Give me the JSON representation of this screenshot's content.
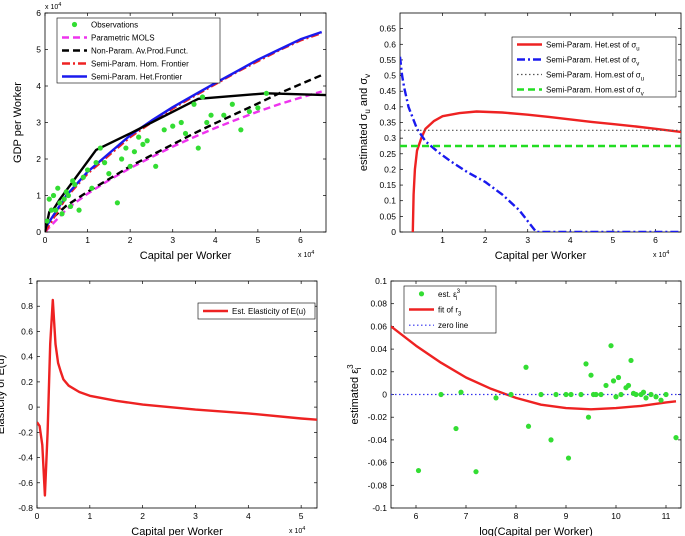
{
  "chart_data": [
    {
      "id": "gdp",
      "type": "line",
      "xlabel": "Capital per Worker",
      "ylabel": "GDP per Worker",
      "x_exponent": "x 10",
      "x_exponent_power": "4",
      "y_exponent": "x 10",
      "y_exponent_power": "4",
      "xlim": [
        0,
        6.6
      ],
      "ylim": [
        0,
        6
      ],
      "xticks": [
        0,
        1,
        2,
        3,
        4,
        5,
        6
      ],
      "yticks": [
        0,
        1,
        2,
        3,
        4,
        5,
        6
      ],
      "legend_position": "top-left",
      "legend": [
        {
          "label": "Observations",
          "color": "#33dd33",
          "style": "dot"
        },
        {
          "label": "Parametric MOLS",
          "color": "#ee33ee",
          "style": "dash"
        },
        {
          "label": "Non-Param. Av.Prod.Funct.",
          "color": "#000000",
          "style": "dash"
        },
        {
          "label": "Semi-Param. Hom. Frontier",
          "color": "#ee2222",
          "style": "dashdot"
        },
        {
          "label": "Semi-Param. Het.Frontier",
          "color": "#1a1aee",
          "style": "solid"
        }
      ],
      "scatter": {
        "x": [
          0.05,
          0.1,
          0.15,
          0.2,
          0.3,
          0.35,
          0.4,
          0.5,
          0.6,
          0.7,
          0.8,
          0.9,
          1.0,
          1.2,
          1.3,
          1.5,
          1.7,
          1.8,
          1.9,
          2.1,
          2.2,
          2.4,
          2.6,
          2.8,
          3.0,
          3.2,
          3.5,
          3.6,
          3.8,
          3.9,
          4.2,
          4.4,
          4.6,
          4.8,
          5.0,
          5.2,
          0.25,
          0.45,
          0.55,
          0.65,
          1.1,
          1.4,
          2.0,
          2.3,
          3.3,
          3.7
        ],
        "y": [
          0.3,
          0.9,
          0.6,
          1.0,
          1.2,
          0.8,
          0.5,
          1.1,
          0.7,
          1.3,
          0.6,
          1.5,
          1.7,
          1.9,
          2.3,
          1.6,
          0.8,
          2.0,
          2.3,
          2.2,
          2.6,
          2.5,
          1.8,
          2.8,
          2.9,
          3.0,
          3.5,
          2.3,
          3.0,
          3.2,
          3.2,
          3.5,
          2.8,
          3.3,
          3.4,
          3.8,
          0.6,
          0.9,
          1.0,
          1.4,
          1.2,
          1.9,
          1.8,
          2.4,
          2.7,
          3.7
        ],
        "color": "#33dd33"
      },
      "series": [
        {
          "name": "Parametric MOLS",
          "color": "#ee33ee",
          "style": "dash",
          "x": [
            0,
            0.5,
            1,
            1.5,
            2,
            2.5,
            3,
            3.5,
            4,
            4.5,
            5,
            5.5,
            6,
            6.5
          ],
          "y": [
            0,
            0.62,
            1.05,
            1.42,
            1.75,
            2.05,
            2.34,
            2.6,
            2.85,
            3.08,
            3.3,
            3.5,
            3.68,
            3.85
          ]
        },
        {
          "name": "Non-Param. Av.Prod.Funct.",
          "color": "#000000",
          "style": "dash",
          "x": [
            0,
            0.5,
            1,
            1.5,
            2,
            2.5,
            3,
            3.5,
            4,
            4.5,
            5,
            5.5,
            6,
            6.5
          ],
          "y": [
            0.2,
            0.72,
            1.1,
            1.45,
            1.8,
            2.1,
            2.4,
            2.7,
            2.98,
            3.25,
            3.52,
            3.8,
            4.05,
            4.3
          ]
        },
        {
          "name": "Semi-Param. Hom. Frontier",
          "color": "#ee2222",
          "style": "dashdot",
          "x": [
            0,
            0.5,
            1,
            1.5,
            2,
            2.5,
            3,
            3.5,
            4,
            4.5,
            5,
            5.5,
            6,
            6.5
          ],
          "y": [
            0,
            0.95,
            1.6,
            2.1,
            2.6,
            3.0,
            3.38,
            3.72,
            4.05,
            4.38,
            4.68,
            4.98,
            5.25,
            5.45
          ]
        },
        {
          "name": "Semi-Param. Het.Frontier",
          "color": "#1a1aee",
          "style": "solid",
          "x": [
            0,
            0.5,
            1,
            1.5,
            2,
            2.5,
            3,
            3.5,
            4,
            4.5,
            5,
            5.5,
            6,
            6.5
          ],
          "y": [
            0.1,
            1.0,
            1.65,
            2.15,
            2.65,
            3.05,
            3.42,
            3.75,
            4.08,
            4.4,
            4.72,
            5.0,
            5.28,
            5.48
          ]
        },
        {
          "name": "envelope",
          "color": "#000000",
          "style": "solid",
          "x": [
            0,
            0.1,
            0.2,
            0.35,
            1.2,
            2.0,
            3.6,
            5.2,
            6.6
          ],
          "y": [
            0,
            0.55,
            0.62,
            0.9,
            2.25,
            2.7,
            3.65,
            3.8,
            3.75
          ]
        }
      ]
    },
    {
      "id": "sigma",
      "type": "line",
      "xlabel": "Capital per Worker",
      "ylabel_text": "estimated σ",
      "ylabel_sub1": "u",
      "ylabel_mid": " and σ",
      "ylabel_sub2": "v",
      "x_exponent": "x 10",
      "x_exponent_power": "4",
      "xlim": [
        0,
        6.6
      ],
      "ylim": [
        0,
        0.7
      ],
      "xticks": [
        1,
        2,
        3,
        4,
        5,
        6
      ],
      "yticks": [
        0,
        0.05,
        0.1,
        0.15,
        0.2,
        0.25,
        0.3,
        0.35,
        0.4,
        0.45,
        0.5,
        0.55,
        0.6,
        0.65
      ],
      "ytick_labels": [
        "0",
        "0.05",
        "0.1",
        "0.15",
        "0.2",
        "0.25",
        "0.3",
        "0.35",
        "0.4",
        "0.45",
        "0.5",
        "0.55",
        "0.6",
        "0.65"
      ],
      "legend_position": "top-right",
      "legend": [
        {
          "label": "Semi-Param. Het.est of σ",
          "sub": "u",
          "color": "#ee2222",
          "style": "solid"
        },
        {
          "label": "Semi-Param. Het.est of σ",
          "sub": "v",
          "color": "#1a1aee",
          "style": "dashdot"
        },
        {
          "label": "Semi-Param. Hom.est of σ",
          "sub": "u",
          "color": "#555555",
          "style": "dot"
        },
        {
          "label": "Semi-Param. Hom.est of σ",
          "sub": "v",
          "color": "#22dd22",
          "style": "dash"
        }
      ],
      "series": [
        {
          "name": "Het σu",
          "color": "#ee2222",
          "style": "solid",
          "x": [
            0.3,
            0.32,
            0.35,
            0.4,
            0.5,
            0.6,
            0.8,
            1.0,
            1.4,
            1.8,
            2.4,
            3.0,
            3.5,
            4.0,
            4.5,
            5.0,
            5.5,
            6.0,
            6.6
          ],
          "y": [
            0,
            0.12,
            0.2,
            0.26,
            0.3,
            0.33,
            0.355,
            0.37,
            0.38,
            0.385,
            0.382,
            0.375,
            0.368,
            0.36,
            0.352,
            0.345,
            0.338,
            0.33,
            0.32
          ]
        },
        {
          "name": "Het σv",
          "color": "#1a1aee",
          "style": "dashdot",
          "x": [
            0,
            0.05,
            0.1,
            0.2,
            0.4,
            0.6,
            0.9,
            1.2,
            1.6,
            2.0,
            2.4,
            2.8,
            3.0,
            3.2,
            4.0,
            5.0,
            6.6
          ],
          "y": [
            0.56,
            0.5,
            0.46,
            0.4,
            0.33,
            0.29,
            0.255,
            0.225,
            0.19,
            0.16,
            0.12,
            0.07,
            0.035,
            0.0,
            0.0,
            0.0,
            0.0
          ]
        },
        {
          "name": "Hom σu",
          "color": "#555555",
          "style": "dot",
          "x": [
            0,
            6.6
          ],
          "y": [
            0.325,
            0.325
          ]
        },
        {
          "name": "Hom σv",
          "color": "#22dd22",
          "style": "dash",
          "x": [
            0,
            6.6
          ],
          "y": [
            0.275,
            0.275
          ]
        }
      ]
    },
    {
      "id": "elast",
      "type": "line",
      "xlabel": "Capital per Worker",
      "ylabel": "Elasticity of E(u)",
      "x_exponent": "x 10",
      "x_exponent_power": "4",
      "xlim": [
        0,
        5.3
      ],
      "ylim": [
        -0.8,
        1.0
      ],
      "xticks": [
        0,
        1,
        2,
        3,
        4,
        5
      ],
      "yticks": [
        -0.8,
        -0.6,
        -0.4,
        -0.2,
        0,
        0.2,
        0.4,
        0.6,
        0.8,
        1.0
      ],
      "ytick_labels": [
        "-0.8",
        "-0.6",
        "-0.4",
        "-0.2",
        "0",
        "0.2",
        "0.4",
        "0.6",
        "0.8",
        "1"
      ],
      "legend_position": "top-right",
      "legend": [
        {
          "label": "Est. Elasticity of E(u)",
          "color": "#ee2222",
          "style": "solid"
        }
      ],
      "series": [
        {
          "name": "Est. Elasticity of E(u)",
          "color": "#ee2222",
          "style": "solid",
          "x": [
            0,
            0.05,
            0.1,
            0.15,
            0.2,
            0.25,
            0.3,
            0.35,
            0.4,
            0.45,
            0.5,
            0.6,
            0.8,
            1.0,
            1.5,
            2.0,
            3.0,
            4.0,
            5.0,
            5.3
          ],
          "y": [
            -0.12,
            -0.15,
            -0.3,
            -0.7,
            -0.2,
            0.5,
            0.85,
            0.5,
            0.35,
            0.28,
            0.22,
            0.17,
            0.12,
            0.09,
            0.05,
            0.02,
            -0.02,
            -0.05,
            -0.09,
            -0.1
          ]
        }
      ]
    },
    {
      "id": "eps",
      "type": "scatter",
      "xlabel": "log(Capital per Worker)",
      "ylabel_text": "estimated ε",
      "ylabel_sup": "3",
      "ylabel_sub": "i",
      "xlim": [
        5.5,
        11.3
      ],
      "ylim": [
        -0.1,
        0.1
      ],
      "xticks": [
        6,
        7,
        8,
        9,
        10,
        11
      ],
      "yticks": [
        -0.1,
        -0.08,
        -0.06,
        -0.04,
        -0.02,
        0,
        0.02,
        0.04,
        0.06,
        0.08,
        0.1
      ],
      "ytick_labels": [
        "-0.1",
        "-0.08",
        "-0.06",
        "-0.04",
        "-0.02",
        "0",
        "0.02",
        "0.04",
        "0.06",
        "0.08",
        "0.1"
      ],
      "legend_position": "top-left",
      "legend": [
        {
          "label": "est. ε",
          "sup": "3",
          "sub": "i",
          "color": "#33dd33",
          "style": "dot"
        },
        {
          "label": "fit of r",
          "sub": "3",
          "color": "#ee2222",
          "style": "solid"
        },
        {
          "label": "zero line",
          "color": "#3333ee",
          "style": "dot"
        }
      ],
      "scatter": {
        "x": [
          6.05,
          6.5,
          6.8,
          6.9,
          7.2,
          7.6,
          7.9,
          8.2,
          8.25,
          8.5,
          8.7,
          8.8,
          9.0,
          9.05,
          9.1,
          9.3,
          9.4,
          9.45,
          9.5,
          9.6,
          9.7,
          9.8,
          9.9,
          9.95,
          10.0,
          10.1,
          10.2,
          10.25,
          10.3,
          10.35,
          10.4,
          10.5,
          10.55,
          10.6,
          10.7,
          10.8,
          10.9,
          11.0,
          11.2,
          9.55,
          10.05
        ],
        "y": [
          -0.067,
          0.0,
          -0.03,
          0.002,
          -0.068,
          -0.003,
          0.0,
          0.024,
          -0.028,
          0.0,
          -0.04,
          0.0,
          0.0,
          -0.056,
          0.0,
          0.0,
          0.027,
          -0.02,
          0.017,
          0.0,
          0.0,
          0.008,
          0.043,
          0.012,
          -0.002,
          0.0,
          0.006,
          0.008,
          0.03,
          0.001,
          0.0,
          0.0,
          0.002,
          -0.003,
          0.0,
          -0.002,
          -0.005,
          0.0,
          -0.038,
          0.0,
          0.015
        ],
        "color": "#33dd33"
      },
      "series": [
        {
          "name": "fit of r3",
          "color": "#ee2222",
          "style": "solid",
          "x": [
            5.5,
            6.0,
            6.5,
            7.0,
            7.5,
            8.0,
            8.5,
            9.0,
            9.5,
            10.0,
            10.5,
            11.0,
            11.2
          ],
          "y": [
            0.06,
            0.043,
            0.028,
            0.015,
            0.005,
            -0.003,
            -0.009,
            -0.012,
            -0.013,
            -0.012,
            -0.01,
            -0.007,
            -0.006
          ]
        },
        {
          "name": "zero line",
          "color": "#3333ee",
          "style": "dot",
          "x": [
            5.5,
            11.3
          ],
          "y": [
            0,
            0
          ]
        }
      ]
    }
  ]
}
